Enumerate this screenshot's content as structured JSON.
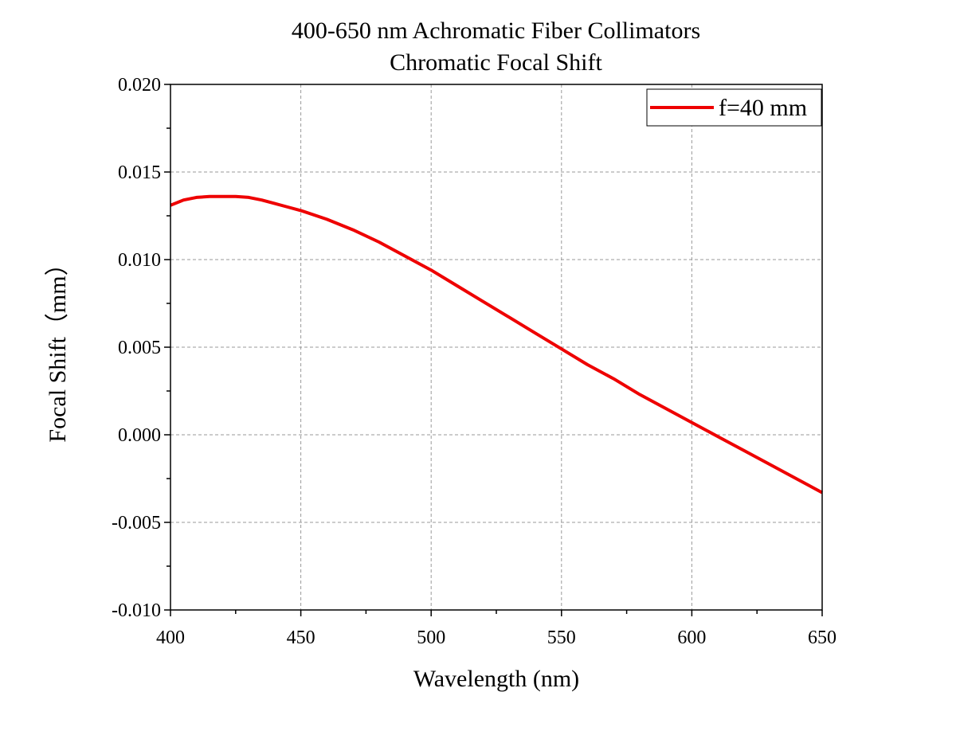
{
  "chart_data": {
    "type": "line",
    "title": "400-650 nm Achromatic Fiber Collimators",
    "subtitle": "Chromatic Focal Shift",
    "xlabel": "Wavelength (nm)",
    "ylabel": "Focal Shift（mm）",
    "xlim": [
      400,
      650
    ],
    "ylim": [
      -0.01,
      0.02
    ],
    "x_ticks": [
      "400",
      "450",
      "500",
      "550",
      "600",
      "650"
    ],
    "y_ticks": [
      "-0.010",
      "-0.005",
      "0.000",
      "0.005",
      "0.010",
      "0.015",
      "0.020"
    ],
    "grid": true,
    "legend_position": "top-right",
    "series": [
      {
        "name": "f=40 mm",
        "color": "#ee0000",
        "x": [
          400,
          405,
          410,
          415,
          420,
          425,
          430,
          435,
          440,
          445,
          450,
          460,
          470,
          480,
          490,
          500,
          510,
          520,
          530,
          540,
          550,
          560,
          570,
          580,
          590,
          600,
          610,
          620,
          630,
          640,
          650
        ],
        "y": [
          0.0131,
          0.0134,
          0.01355,
          0.0136,
          0.0136,
          0.0136,
          0.01355,
          0.0134,
          0.0132,
          0.013,
          0.0128,
          0.0123,
          0.0117,
          0.011,
          0.0102,
          0.0094,
          0.0085,
          0.0076,
          0.0067,
          0.0058,
          0.0049,
          0.004,
          0.0032,
          0.0023,
          0.0015,
          0.0007,
          -0.0001,
          -0.0009,
          -0.0017,
          -0.0025,
          -0.0033
        ]
      }
    ]
  }
}
